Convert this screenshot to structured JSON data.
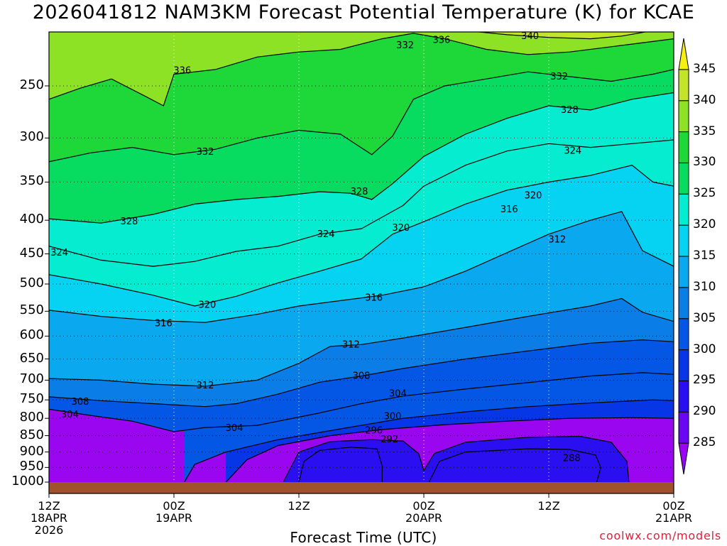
{
  "chart_data": {
    "type": "heatmap",
    "title": "2026041812 NAM3KM Forecast Potential Temperature (K) for KCAE",
    "xlabel": "Forecast Time (UTC)",
    "ylabel": "",
    "credit": "coolwx.com/models",
    "x_hours_range": [
      0,
      60
    ],
    "y_range_hpa": [
      1000,
      200
    ],
    "y_scale": "log-pressure",
    "grid": true,
    "x_ticks": [
      {
        "hour": 0,
        "line1": "12Z",
        "line2": "18APR",
        "line3": "2026"
      },
      {
        "hour": 12,
        "line1": "00Z",
        "line2": "19APR",
        "line3": ""
      },
      {
        "hour": 24,
        "line1": "12Z",
        "line2": "",
        "line3": ""
      },
      {
        "hour": 36,
        "line1": "00Z",
        "line2": "20APR",
        "line3": ""
      },
      {
        "hour": 48,
        "line1": "12Z",
        "line2": "",
        "line3": ""
      },
      {
        "hour": 60,
        "line1": "00Z",
        "line2": "21APR",
        "line3": ""
      }
    ],
    "y_ticks": [
      250,
      300,
      350,
      400,
      450,
      500,
      550,
      600,
      650,
      700,
      750,
      800,
      850,
      900,
      950,
      1000
    ],
    "y_tick_labels": [
      "250",
      "300",
      "350",
      "400",
      "450",
      "500",
      "550",
      "600",
      "650",
      "700",
      "750",
      "800",
      "850",
      "900",
      "950",
      "1000"
    ],
    "colorbar": {
      "levels": [
        285,
        290,
        295,
        300,
        305,
        310,
        315,
        320,
        325,
        330,
        335,
        340,
        345
      ],
      "labels": [
        "285",
        "290",
        "295",
        "300",
        "305",
        "310",
        "315",
        "320",
        "325",
        "330",
        "335",
        "340",
        "345"
      ],
      "colors": [
        "#9a06f0",
        "#6a06f4",
        "#2a10f0",
        "#0636e6",
        "#0456e4",
        "#0a7ee6",
        "#0aa8ee",
        "#06d2f2",
        "#06ecd0",
        "#08dc60",
        "#1ed83a",
        "#8ee226",
        "#c2e42a",
        "#f6f010"
      ]
    },
    "contour_labels": [
      {
        "value": "340",
        "hour": 46.2,
        "hpa": 210
      },
      {
        "value": "336",
        "hour": 37.7,
        "hpa": 213
      },
      {
        "value": "332",
        "hour": 34.2,
        "hpa": 217
      },
      {
        "value": "336",
        "hour": 12.8,
        "hpa": 237
      },
      {
        "value": "332",
        "hour": 49.0,
        "hpa": 242
      },
      {
        "value": "328",
        "hour": 50.0,
        "hpa": 272
      },
      {
        "value": "332",
        "hour": 15.0,
        "hpa": 315
      },
      {
        "value": "324",
        "hour": 50.3,
        "hpa": 314
      },
      {
        "value": "328",
        "hour": 29.8,
        "hpa": 362
      },
      {
        "value": "320",
        "hour": 46.5,
        "hpa": 367
      },
      {
        "value": "316",
        "hour": 44.2,
        "hpa": 385
      },
      {
        "value": "328",
        "hour": 7.7,
        "hpa": 402
      },
      {
        "value": "324",
        "hour": 26.6,
        "hpa": 420
      },
      {
        "value": "320",
        "hour": 33.8,
        "hpa": 411
      },
      {
        "value": "312",
        "hour": 48.8,
        "hpa": 428
      },
      {
        "value": "324",
        "hour": 1.0,
        "hpa": 448
      },
      {
        "value": "316",
        "hour": 31.2,
        "hpa": 525
      },
      {
        "value": "320",
        "hour": 15.2,
        "hpa": 538
      },
      {
        "value": "316",
        "hour": 11.0,
        "hpa": 574
      },
      {
        "value": "312",
        "hour": 29.0,
        "hpa": 618
      },
      {
        "value": "308",
        "hour": 30.0,
        "hpa": 690
      },
      {
        "value": "312",
        "hour": 15.0,
        "hpa": 713
      },
      {
        "value": "304",
        "hour": 33.5,
        "hpa": 734
      },
      {
        "value": "308",
        "hour": 3.0,
        "hpa": 755
      },
      {
        "value": "304",
        "hour": 2.0,
        "hpa": 790
      },
      {
        "value": "300",
        "hour": 33.0,
        "hpa": 795
      },
      {
        "value": "304",
        "hour": 17.8,
        "hpa": 828
      },
      {
        "value": "296",
        "hour": 31.2,
        "hpa": 835
      },
      {
        "value": "292",
        "hour": 32.7,
        "hpa": 862
      },
      {
        "value": "288",
        "hour": 50.2,
        "hpa": 920
      }
    ],
    "contours": [
      {
        "level": 288,
        "points": [
          [
            24,
            1000
          ],
          [
            24.5,
            930
          ],
          [
            26,
            895
          ],
          [
            29,
            885
          ],
          [
            31.5,
            890
          ],
          [
            32,
            945
          ],
          [
            32,
            1000
          ]
        ]
      },
      {
        "level": 288,
        "points": [
          [
            36.5,
            1000
          ],
          [
            37.5,
            930
          ],
          [
            40,
            900
          ],
          [
            46,
            890
          ],
          [
            50,
            892
          ],
          [
            52.5,
            910
          ],
          [
            53,
            950
          ],
          [
            52.6,
            1000
          ]
        ]
      },
      {
        "level": 292,
        "points": [
          [
            22.5,
            1000
          ],
          [
            24,
            900
          ],
          [
            27,
            868
          ],
          [
            31,
            862
          ],
          [
            34,
            866
          ],
          [
            35.5,
            905
          ],
          [
            36,
            960
          ],
          [
            37,
            905
          ],
          [
            40,
            870
          ],
          [
            46,
            855
          ],
          [
            51,
            852
          ],
          [
            54,
            870
          ],
          [
            55.5,
            930
          ],
          [
            55.7,
            1000
          ]
        ]
      },
      {
        "level": 296,
        "points": [
          [
            17,
            1000
          ],
          [
            19,
            925
          ],
          [
            22,
            880
          ],
          [
            27,
            850
          ],
          [
            32,
            832
          ],
          [
            38,
            818
          ],
          [
            44,
            808
          ],
          [
            50,
            800
          ],
          [
            56,
            798
          ],
          [
            60,
            800
          ]
        ]
      },
      {
        "level": 300,
        "points": [
          [
            13,
            1000
          ],
          [
            14,
            940
          ],
          [
            17,
            900
          ],
          [
            22,
            862
          ],
          [
            28,
            830
          ],
          [
            34,
            800
          ],
          [
            40,
            782
          ],
          [
            46,
            768
          ],
          [
            52,
            758
          ],
          [
            58,
            750
          ],
          [
            60,
            752
          ]
        ]
      },
      {
        "level": 304,
        "points": [
          [
            0,
            775
          ],
          [
            4,
            792
          ],
          [
            8,
            808
          ],
          [
            12,
            838
          ],
          [
            15,
            826
          ],
          [
            20,
            820
          ],
          [
            26,
            785
          ],
          [
            30,
            760
          ],
          [
            34,
            740
          ],
          [
            40,
            722
          ],
          [
            46,
            706
          ],
          [
            52,
            690
          ],
          [
            57,
            682
          ],
          [
            60,
            686
          ]
        ]
      },
      {
        "level": 308,
        "points": [
          [
            0,
            742
          ],
          [
            5,
            752
          ],
          [
            10,
            760
          ],
          [
            15,
            768
          ],
          [
            18,
            760
          ],
          [
            22,
            735
          ],
          [
            26,
            705
          ],
          [
            30,
            690
          ],
          [
            34,
            672
          ],
          [
            40,
            650
          ],
          [
            46,
            632
          ],
          [
            52,
            615
          ],
          [
            57,
            608
          ],
          [
            60,
            612
          ]
        ]
      },
      {
        "level": 312,
        "points": [
          [
            0,
            696
          ],
          [
            5,
            700
          ],
          [
            10,
            710
          ],
          [
            15,
            715
          ],
          [
            20,
            700
          ],
          [
            24,
            660
          ],
          [
            27,
            622
          ],
          [
            30,
            618
          ],
          [
            34,
            604
          ],
          [
            40,
            582
          ],
          [
            46,
            560
          ],
          [
            52,
            540
          ],
          [
            55,
            526
          ],
          [
            57,
            552
          ],
          [
            60,
            570
          ]
        ]
      },
      {
        "level": 316,
        "points": [
          [
            0,
            548
          ],
          [
            5,
            560
          ],
          [
            10,
            568
          ],
          [
            15,
            572
          ],
          [
            20,
            556
          ],
          [
            24,
            540
          ],
          [
            28,
            530
          ],
          [
            32,
            520
          ],
          [
            36,
            505
          ],
          [
            40,
            478
          ],
          [
            44,
            448
          ],
          [
            48,
            420
          ],
          [
            52,
            400
          ],
          [
            55,
            388
          ],
          [
            57,
            445
          ],
          [
            60,
            470
          ]
        ]
      },
      {
        "level": 320,
        "points": [
          [
            0,
            484
          ],
          [
            5,
            500
          ],
          [
            10,
            520
          ],
          [
            14,
            540
          ],
          [
            18,
            522
          ],
          [
            22,
            498
          ],
          [
            26,
            478
          ],
          [
            30,
            458
          ],
          [
            33,
            420
          ],
          [
            36,
            402
          ],
          [
            40,
            378
          ],
          [
            44,
            360
          ],
          [
            48,
            350
          ],
          [
            52,
            342
          ],
          [
            56,
            330
          ],
          [
            58,
            350
          ],
          [
            60,
            355
          ]
        ]
      },
      {
        "level": 324,
        "points": [
          [
            0,
            438
          ],
          [
            5,
            460
          ],
          [
            10,
            470
          ],
          [
            14,
            462
          ],
          [
            18,
            446
          ],
          [
            22,
            438
          ],
          [
            26,
            420
          ],
          [
            30,
            412
          ],
          [
            34,
            380
          ],
          [
            36,
            355
          ],
          [
            40,
            330
          ],
          [
            44,
            314
          ],
          [
            48,
            306
          ],
          [
            52,
            310
          ],
          [
            56,
            306
          ],
          [
            60,
            302
          ]
        ]
      },
      {
        "level": 328,
        "points": [
          [
            0,
            398
          ],
          [
            5,
            404
          ],
          [
            10,
            392
          ],
          [
            14,
            378
          ],
          [
            18,
            372
          ],
          [
            22,
            368
          ],
          [
            26,
            362
          ],
          [
            29,
            364
          ],
          [
            31,
            372
          ],
          [
            33,
            352
          ],
          [
            36,
            320
          ],
          [
            40,
            296
          ],
          [
            44,
            280
          ],
          [
            48,
            268
          ],
          [
            52,
            272
          ],
          [
            56,
            262
          ],
          [
            60,
            256
          ]
        ]
      },
      {
        "level": 332,
        "points": [
          [
            0,
            326
          ],
          [
            4,
            316
          ],
          [
            8,
            310
          ],
          [
            12,
            318
          ],
          [
            16,
            312
          ],
          [
            20,
            300
          ],
          [
            24,
            292
          ],
          [
            28,
            296
          ],
          [
            31,
            318
          ],
          [
            33,
            298
          ],
          [
            35,
            262
          ],
          [
            38,
            250
          ],
          [
            42,
            244
          ],
          [
            46,
            238
          ],
          [
            50,
            242
          ],
          [
            54,
            246
          ],
          [
            58,
            240
          ],
          [
            60,
            236
          ]
        ]
      },
      {
        "level": 336,
        "points": [
          [
            0,
            262
          ],
          [
            3,
            252
          ],
          [
            6,
            244
          ],
          [
            9,
            258
          ],
          [
            11,
            268
          ],
          [
            12,
            240
          ],
          [
            16,
            236
          ],
          [
            20,
            226
          ],
          [
            24,
            222
          ],
          [
            28,
            220
          ],
          [
            32,
            212
          ],
          [
            35,
            208
          ],
          [
            38,
            212
          ],
          [
            42,
            220
          ],
          [
            46,
            224
          ],
          [
            50,
            222
          ],
          [
            54,
            218
          ],
          [
            58,
            214
          ],
          [
            60,
            212
          ]
        ]
      },
      {
        "level": 340,
        "points": [
          [
            36,
            204
          ],
          [
            40,
            206
          ],
          [
            44,
            209
          ],
          [
            48,
            211
          ],
          [
            52,
            212
          ],
          [
            55,
            210
          ],
          [
            58,
            206
          ],
          [
            60,
            204
          ]
        ]
      }
    ]
  }
}
